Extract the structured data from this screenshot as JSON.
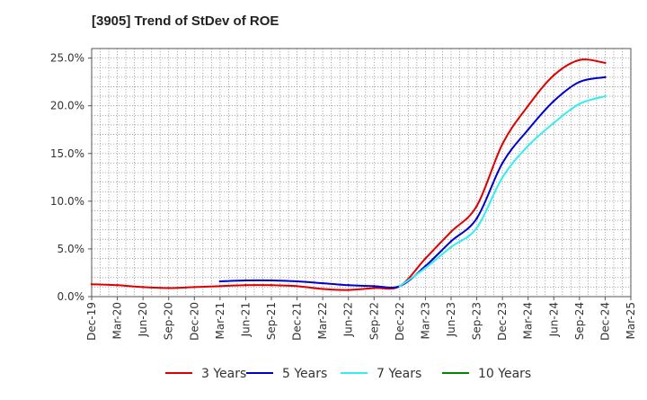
{
  "title": "[3905]  Trend of StDev of ROE",
  "colors": {
    "3 Years": "#dd0000",
    "5 Years": "#0000cc",
    "7 Years": "#33eeee",
    "10 Years": "#008800"
  },
  "chart_data": {
    "type": "line",
    "title": "[3905]  Trend of StDev of ROE",
    "xlabel": "",
    "ylabel": "",
    "ylim": [
      0,
      26
    ],
    "grid": true,
    "legend": "bottom",
    "x_ticks": [
      "Dec-19",
      "Mar-20",
      "Jun-20",
      "Sep-20",
      "Dec-20",
      "Mar-21",
      "Jun-21",
      "Sep-21",
      "Dec-21",
      "Mar-22",
      "Jun-22",
      "Sep-22",
      "Dec-22",
      "Mar-23",
      "Jun-23",
      "Sep-23",
      "Dec-23",
      "Mar-24",
      "Jun-24",
      "Sep-24",
      "Dec-24",
      "Mar-25"
    ],
    "y_ticks": [
      "0.0%",
      "5.0%",
      "10.0%",
      "15.0%",
      "20.0%",
      "25.0%"
    ],
    "series": [
      {
        "name": "3 Years",
        "x": [
          "Dec-19",
          "Mar-20",
          "Jun-20",
          "Sep-20",
          "Dec-20",
          "Mar-21",
          "Jun-21",
          "Sep-21",
          "Dec-21",
          "Mar-22",
          "Jun-22",
          "Sep-22",
          "Dec-22",
          "Mar-23",
          "Jun-23",
          "Sep-23",
          "Dec-23",
          "Mar-24",
          "Jun-24",
          "Sep-24",
          "Dec-24"
        ],
        "values": [
          1.3,
          1.2,
          1.0,
          0.9,
          1.0,
          1.1,
          1.2,
          1.2,
          1.1,
          0.8,
          0.7,
          0.9,
          1.1,
          4.0,
          6.8,
          9.5,
          16.0,
          20.0,
          23.2,
          24.8,
          24.5
        ]
      },
      {
        "name": "5 Years",
        "x": [
          "Mar-21",
          "Jun-21",
          "Sep-21",
          "Dec-21",
          "Mar-22",
          "Jun-22",
          "Sep-22",
          "Dec-22",
          "Mar-23",
          "Jun-23",
          "Sep-23",
          "Dec-23",
          "Mar-24",
          "Jun-24",
          "Sep-24",
          "Dec-24"
        ],
        "values": [
          1.6,
          1.7,
          1.7,
          1.6,
          1.4,
          1.2,
          1.1,
          1.1,
          3.2,
          5.8,
          8.2,
          14.0,
          17.5,
          20.5,
          22.5,
          23.0
        ]
      },
      {
        "name": "7 Years",
        "x": [
          "Dec-22",
          "Mar-23",
          "Jun-23",
          "Sep-23",
          "Dec-23",
          "Mar-24",
          "Jun-24",
          "Sep-24",
          "Dec-24"
        ],
        "values": [
          1.1,
          3.0,
          5.2,
          7.2,
          12.5,
          15.8,
          18.2,
          20.2,
          21.0
        ]
      },
      {
        "name": "10 Years",
        "x": [],
        "values": []
      }
    ]
  }
}
